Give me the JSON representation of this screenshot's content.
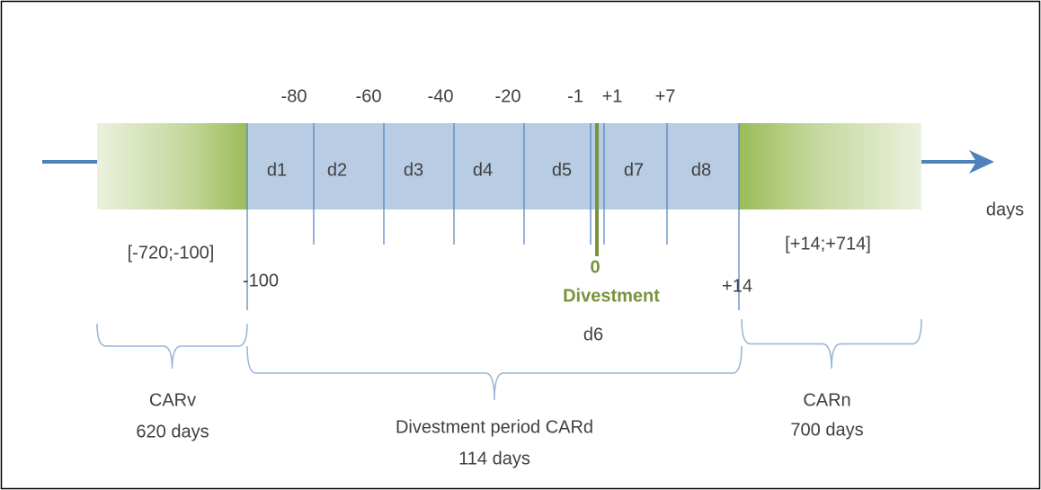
{
  "ticks_above": [
    "-80",
    "-60",
    "-40",
    "-20",
    "-1",
    "+1",
    "+7"
  ],
  "segments": [
    "d1",
    "d2",
    "d3",
    "d4",
    "d5",
    "d7",
    "d8"
  ],
  "ranges": [
    "[-720;-100]",
    "[+14;+714]"
  ],
  "bounds": [
    "-100",
    "+14"
  ],
  "event": {
    "day": "0",
    "label": "Divestment",
    "segment": "d6"
  },
  "axis_label": "days",
  "windows": [
    {
      "name": "CARv",
      "duration": "620 days"
    },
    {
      "name": "Divestment period CARd",
      "duration": "114 days"
    },
    {
      "name": "CARn",
      "duration": "700 days"
    }
  ]
}
